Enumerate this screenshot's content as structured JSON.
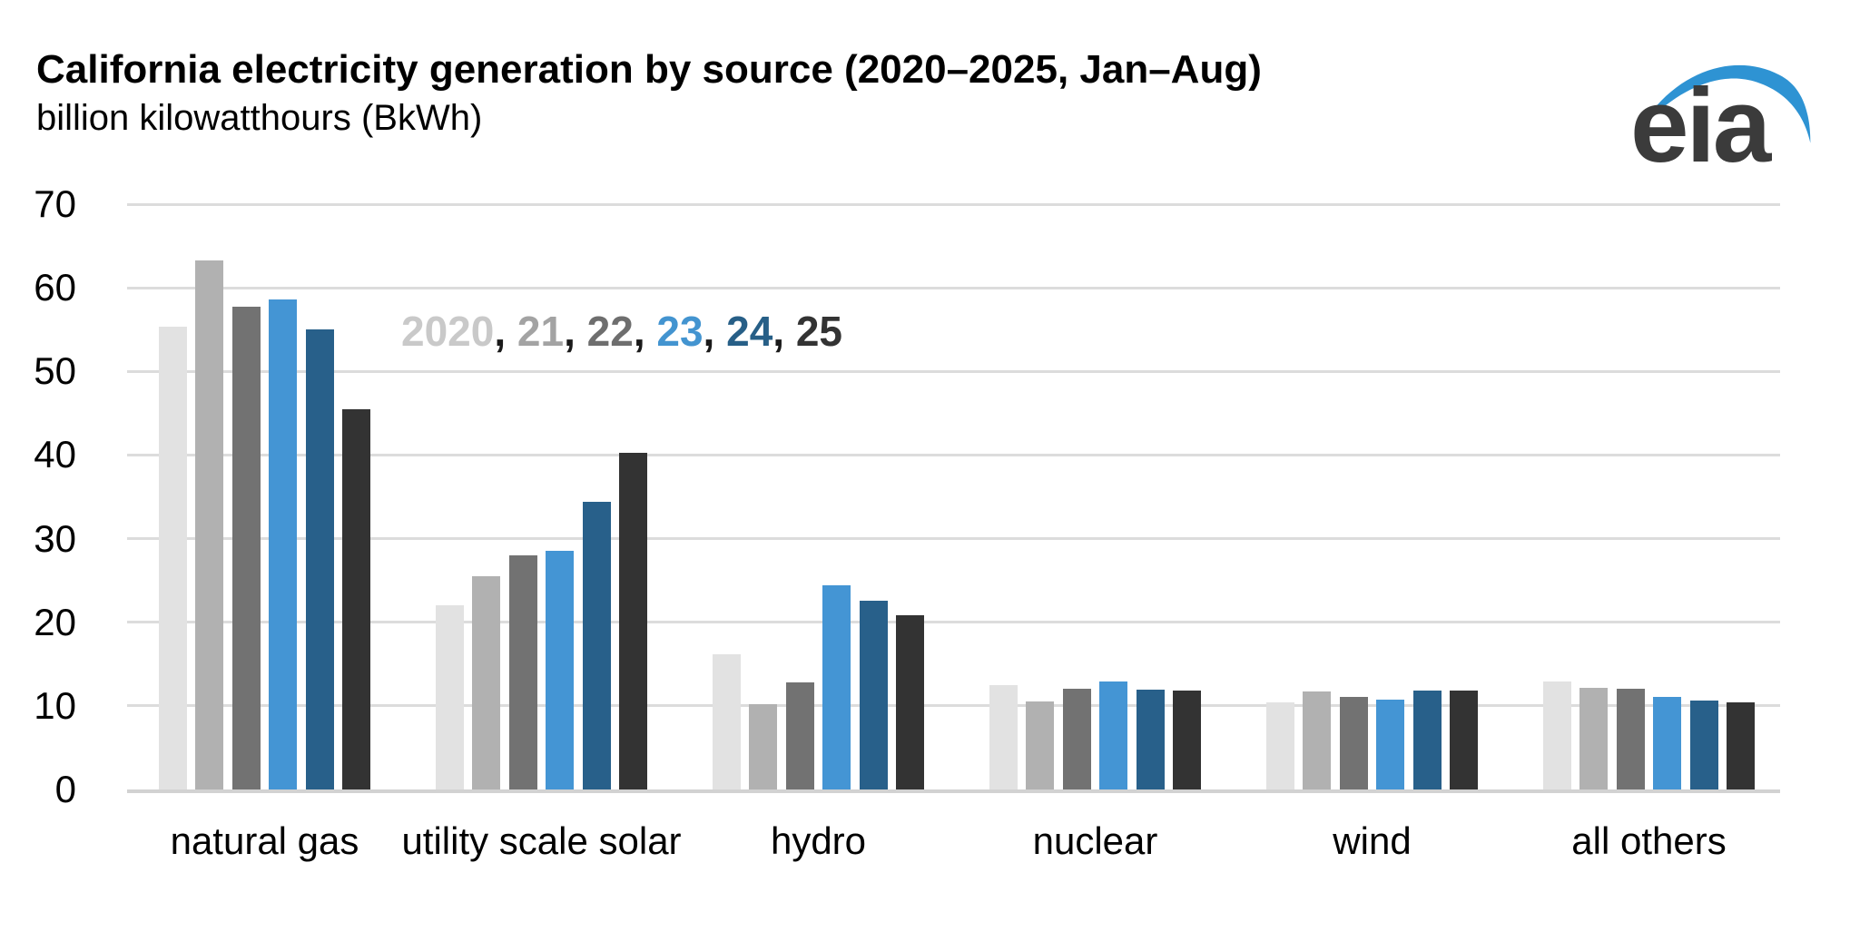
{
  "logo": {
    "text": "eia",
    "swoosh_color": "#2e93d3",
    "text_color": "#3b3b3b"
  },
  "chart_data": {
    "type": "bar",
    "title": "California electricity generation by source (2020–2025, Jan–Aug)",
    "subtitle": "billion kilowatthours (BkWh)",
    "xlabel": "",
    "ylabel": "billion kilowatthours (BkWh)",
    "ylim": [
      0,
      70
    ],
    "yticks": [
      0,
      10,
      20,
      30,
      40,
      50,
      60,
      70
    ],
    "grid": true,
    "gridline_color": "#dcdcdc",
    "categories": [
      "natural gas",
      "utility scale solar",
      "hydro",
      "nuclear",
      "wind",
      "all others"
    ],
    "series": [
      {
        "name": "2020",
        "color": "#e2e2e2",
        "values": [
          55.3,
          22.0,
          16.2,
          12.5,
          10.4,
          12.9
        ]
      },
      {
        "name": "21",
        "color": "#b1b1b1",
        "values": [
          63.3,
          25.5,
          10.2,
          10.5,
          11.7,
          12.2
        ]
      },
      {
        "name": "22",
        "color": "#727272",
        "values": [
          57.7,
          28.0,
          12.8,
          12.1,
          11.1,
          12.1
        ]
      },
      {
        "name": "23",
        "color": "#4495d4",
        "values": [
          58.6,
          28.5,
          24.4,
          12.9,
          10.7,
          11.1
        ]
      },
      {
        "name": "24",
        "color": "#28608a",
        "values": [
          55.0,
          34.4,
          22.6,
          11.9,
          11.8,
          10.6
        ]
      },
      {
        "name": "25",
        "color": "#333333",
        "values": [
          45.5,
          40.3,
          20.8,
          11.8,
          11.8,
          10.4
        ]
      }
    ],
    "legend": {
      "position": "inside-plot-upper-left",
      "labels": [
        "2020",
        "21",
        "22",
        "23",
        "24",
        "25"
      ],
      "label_colors": [
        "#c9c9c9",
        "#a3a3a3",
        "#6e6e6e",
        "#4394d0",
        "#275f87",
        "#333333"
      ],
      "separator": ", ",
      "separator_color": "#1a1a1a"
    }
  }
}
